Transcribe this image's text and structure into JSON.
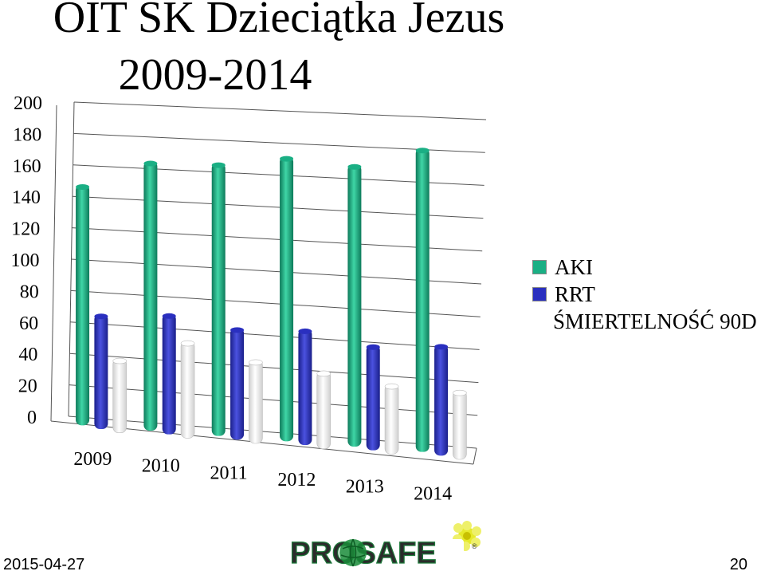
{
  "title_line1": "OIT SK Dzieciątka Jezus",
  "title_line2": "2009-2014",
  "footer": {
    "date": "2015-04-27",
    "page": "20",
    "logo_text": "PROSAFE"
  },
  "chart_data": {
    "type": "bar",
    "categories": [
      "2009",
      "2010",
      "2011",
      "2012",
      "2013",
      "2014"
    ],
    "series": [
      {
        "name": "AKI",
        "values": [
          153,
          170,
          171,
          177,
          174,
          186
        ],
        "color": "#1aaf84"
      },
      {
        "name": "RRT",
        "values": [
          73,
          76,
          70,
          72,
          65,
          68
        ],
        "color": "#2a2fbf"
      },
      {
        "name": "ŚMIERTELNOŚĆ 90D",
        "values": [
          47,
          61,
          52,
          48,
          43,
          42
        ],
        "color": "#f2f2f2"
      }
    ],
    "ylim": [
      0,
      200
    ],
    "yticks": [
      "0",
      "20",
      "40",
      "60",
      "80",
      "100",
      "120",
      "140",
      "160",
      "180",
      "200"
    ],
    "grid": true,
    "legend": "right"
  }
}
